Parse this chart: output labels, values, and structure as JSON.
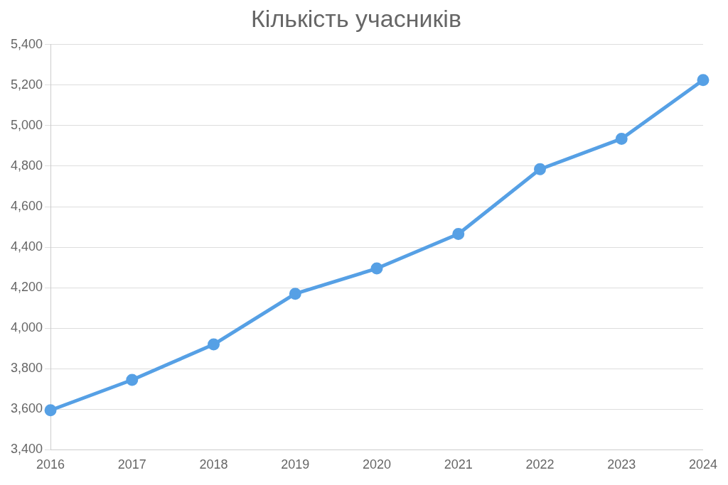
{
  "chart_data": {
    "type": "line",
    "title": "Кількість учасників",
    "categories": [
      "2016",
      "2017",
      "2018",
      "2019",
      "2020",
      "2021",
      "2022",
      "2023",
      "2024"
    ],
    "series": [
      {
        "color": "#56a0e5",
        "values": [
          3595,
          3745,
          3920,
          4170,
          4295,
          4465,
          4785,
          4935,
          5225
        ]
      }
    ],
    "ylim": [
      3400,
      5400
    ],
    "yticks": [
      {
        "value": 3400,
        "label": "3,400"
      },
      {
        "value": 3600,
        "label": "3,600"
      },
      {
        "value": 3800,
        "label": "3,800"
      },
      {
        "value": 4000,
        "label": "4,000"
      },
      {
        "value": 4200,
        "label": "4,200"
      },
      {
        "value": 4400,
        "label": "4,400"
      },
      {
        "value": 4600,
        "label": "4,600"
      },
      {
        "value": 4800,
        "label": "4,800"
      },
      {
        "value": 5000,
        "label": "5,000"
      },
      {
        "value": 5200,
        "label": "5,200"
      },
      {
        "value": 5400,
        "label": "5,400"
      }
    ],
    "grid": "y",
    "legend": false,
    "marker": "circle",
    "line_style": "solid"
  }
}
